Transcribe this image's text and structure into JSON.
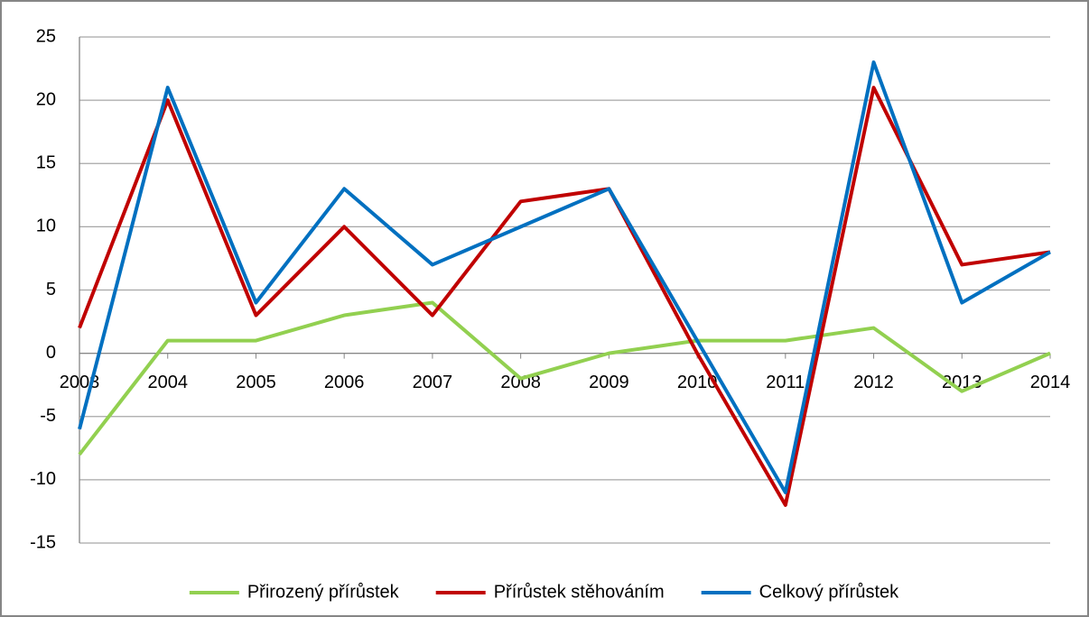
{
  "chart_data": {
    "type": "line",
    "categories": [
      "2003",
      "2004",
      "2005",
      "2006",
      "2007",
      "2008",
      "2009",
      "2010",
      "2011",
      "2012",
      "2013",
      "2014"
    ],
    "series": [
      {
        "name": "Přirozený přírůstek",
        "color": "#92d050",
        "values": [
          -8,
          1,
          1,
          3,
          4,
          -2,
          0,
          1,
          1,
          2,
          -3,
          0
        ]
      },
      {
        "name": "Přírůstek stěhováním",
        "color": "#c00000",
        "values": [
          2,
          20,
          3,
          10,
          3,
          12,
          13,
          0,
          -12,
          21,
          7,
          8
        ]
      },
      {
        "name": "Celkový přírůstek",
        "color": "#0070c0",
        "values": [
          -6,
          21,
          4,
          13,
          7,
          10,
          13,
          1,
          -11,
          23,
          4,
          8
        ]
      }
    ],
    "ylim": [
      -15,
      25
    ],
    "yticks": [
      -15,
      -10,
      -5,
      0,
      5,
      10,
      15,
      20,
      25
    ],
    "grid": true,
    "legend": "bottom"
  }
}
